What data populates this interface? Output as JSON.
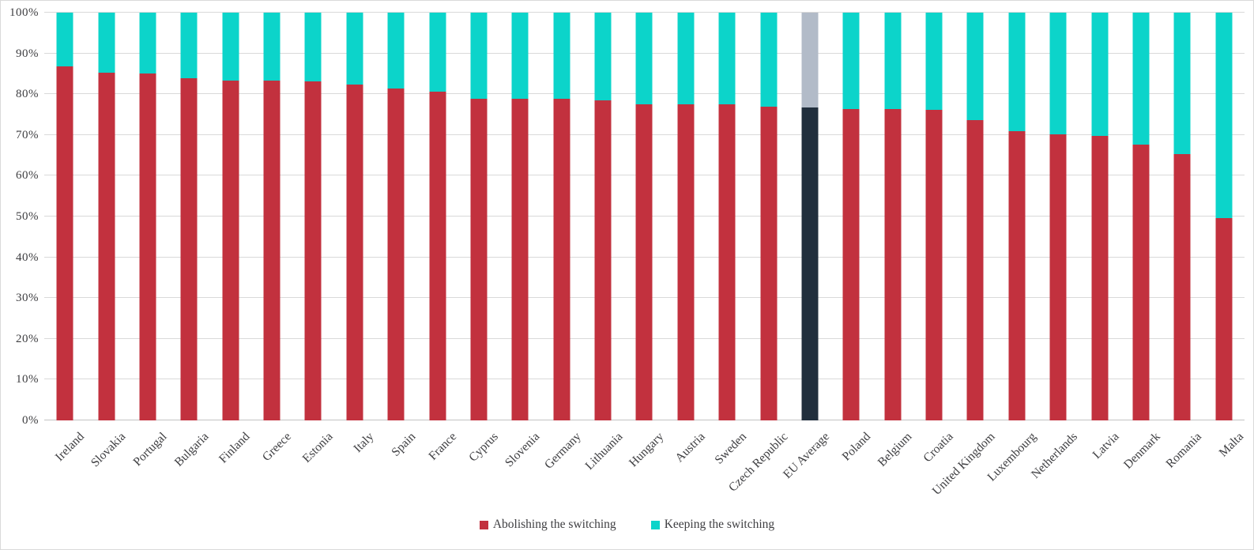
{
  "chart_data": {
    "type": "bar",
    "stacked": true,
    "orientation": "vertical",
    "title": "",
    "xlabel": "",
    "ylabel": "",
    "ylim": [
      0,
      100
    ],
    "grid": true,
    "legend_position": "bottom",
    "y_ticks": [
      "0%",
      "10%",
      "20%",
      "30%",
      "40%",
      "50%",
      "60%",
      "70%",
      "80%",
      "90%",
      "100%"
    ],
    "categories": [
      "Ireland",
      "Slovakia",
      "Portugal",
      "Bulgaria",
      "Finland",
      "Greece",
      "Estonia",
      "Italy",
      "Spain",
      "France",
      "Cyprus",
      "Slovenia",
      "Germany",
      "Lithuania",
      "Hungary",
      "Austria",
      "Sweden",
      "Czech Republic",
      "EU Average",
      "Poland",
      "Belgium",
      "Croatia",
      "United Kingdom",
      "Luxembourg",
      "Netherlands",
      "Latvia",
      "Denmark",
      "Romania",
      "Malta"
    ],
    "series": [
      {
        "name": "Abolishing the switching",
        "color": "#C2313E",
        "values": [
          86.8,
          85.3,
          85.1,
          83.9,
          83.4,
          83.4,
          83.1,
          82.4,
          81.4,
          80.6,
          78.9,
          78.9,
          78.9,
          78.4,
          77.6,
          77.6,
          77.6,
          77.0,
          76.8,
          76.4,
          76.4,
          76.1,
          73.7,
          70.9,
          70.1,
          69.8,
          67.7,
          65.4,
          49.7
        ]
      },
      {
        "name": "Keeping the switching",
        "color": "#0CD4CA",
        "values": [
          13.2,
          14.7,
          14.9,
          16.1,
          16.6,
          16.6,
          16.9,
          17.6,
          18.6,
          19.4,
          21.1,
          21.1,
          21.1,
          21.6,
          22.4,
          22.4,
          22.4,
          23.0,
          23.2,
          23.6,
          23.6,
          23.9,
          26.3,
          29.1,
          29.9,
          30.2,
          32.3,
          34.6,
          50.3
        ]
      }
    ],
    "highlight": {
      "category": "EU Average",
      "bottom_color": "#212F3D",
      "top_color": "#B2BBC8"
    }
  },
  "legend": {
    "items": [
      {
        "label": "Abolishing the switching",
        "color": "#C2313E"
      },
      {
        "label": "Keeping the switching",
        "color": "#0CD4CA"
      }
    ]
  },
  "style": {
    "gridline_color": "#D9D9D9",
    "axis_line_color": "#C3C3C3",
    "text_color": "#3E3E41",
    "background": "#FFFFFF",
    "border_color": "#D9D9D9"
  }
}
